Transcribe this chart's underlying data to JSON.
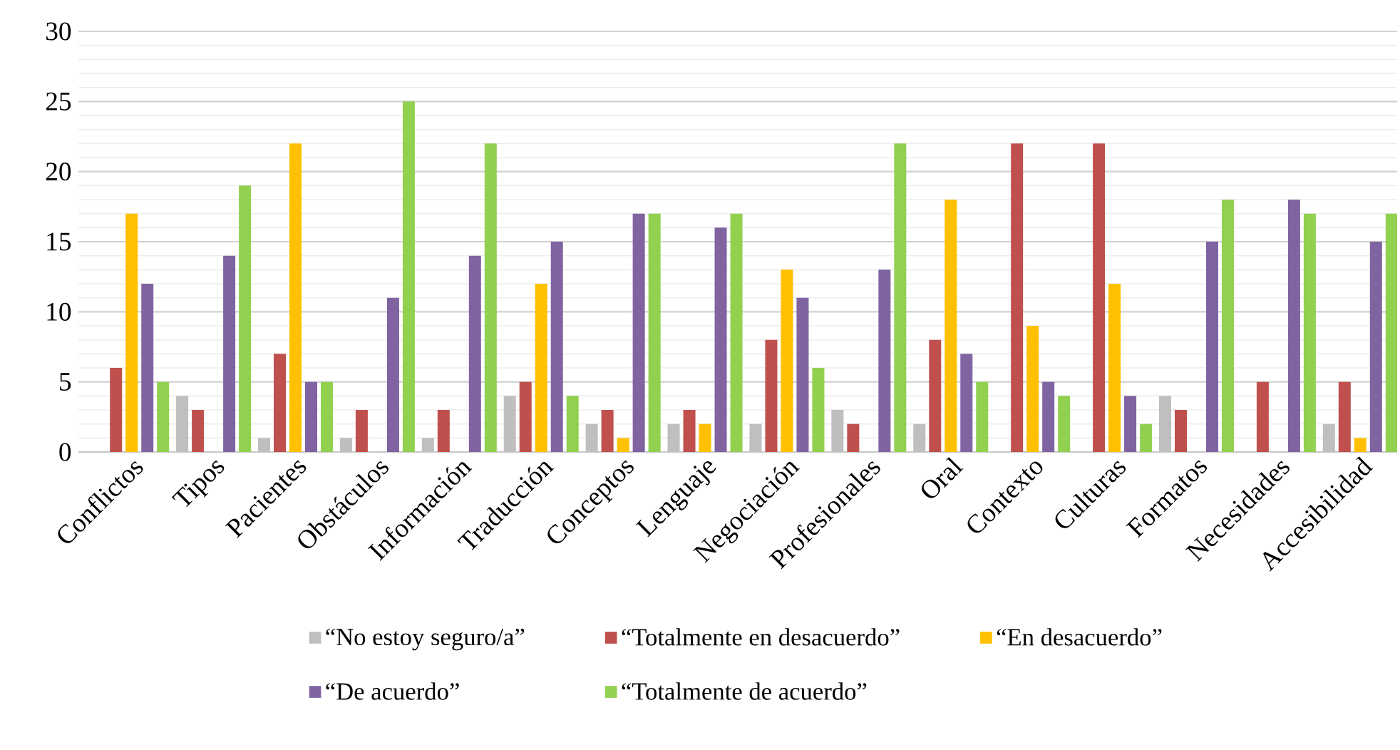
{
  "chart_data": {
    "type": "bar",
    "categories": [
      "Conflictos",
      "Tipos",
      "Pacientes",
      "Obstáculos",
      "Información",
      "Traducción",
      "Conceptos",
      "Lenguaje",
      "Negociación",
      "Profesionales",
      "Oral",
      "Contexto",
      "Culturas",
      "Formatos",
      "Necesidades",
      "Accesibilidad"
    ],
    "series": [
      {
        "name": "“No estoy seguro/a”",
        "color": "#bfbfbf",
        "values": [
          0,
          4,
          1,
          1,
          1,
          4,
          2,
          2,
          2,
          3,
          2,
          0,
          0,
          4,
          0,
          2
        ]
      },
      {
        "name": "“Totalmente en desacuerdo”",
        "color": "#c0504d",
        "values": [
          6,
          3,
          7,
          3,
          3,
          5,
          3,
          3,
          8,
          2,
          8,
          22,
          22,
          3,
          5,
          5
        ]
      },
      {
        "name": "“En desacuerdo”",
        "color": "#ffc000",
        "values": [
          17,
          0,
          22,
          0,
          0,
          12,
          1,
          2,
          13,
          0,
          18,
          9,
          12,
          0,
          0,
          1
        ]
      },
      {
        "name": "“De acuerdo”",
        "color": "#8064a2",
        "values": [
          12,
          14,
          5,
          11,
          14,
          15,
          17,
          16,
          11,
          13,
          7,
          5,
          4,
          15,
          18,
          15
        ]
      },
      {
        "name": "“Totalmente de acuerdo”",
        "color": "#92d050",
        "values": [
          5,
          19,
          5,
          25,
          22,
          4,
          17,
          17,
          6,
          22,
          5,
          4,
          2,
          18,
          17,
          17
        ]
      }
    ],
    "ylim": [
      0,
      30
    ],
    "yticks": [
      0,
      5,
      10,
      15,
      20,
      25,
      30
    ],
    "grid": "y",
    "legend": "bottom"
  }
}
